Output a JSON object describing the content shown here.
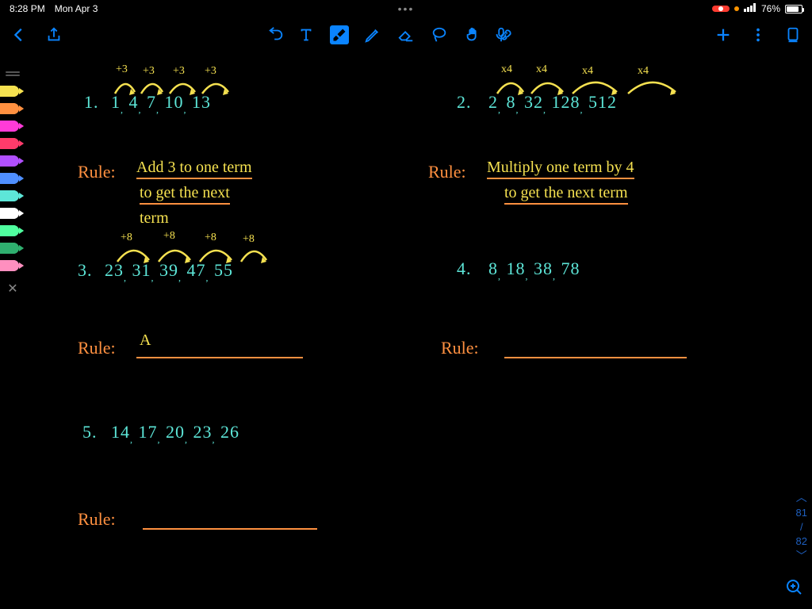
{
  "status": {
    "time": "8:28 PM",
    "date": "Mon Apr 3",
    "battery_pct": "76%",
    "recording": true
  },
  "palette": {
    "colors": [
      "#f5e150",
      "#ff9040",
      "#ff3bd8",
      "#ff3b6b",
      "#b14fff",
      "#4f8fff",
      "#5de6d8",
      "#ffffff",
      "#4fff9f",
      "#2faf6f",
      "#ff8fbf"
    ]
  },
  "problems": {
    "p1": {
      "num": "1.",
      "sequence": "1, 4, 7, 10, 13",
      "arc_labels": [
        "+3",
        "+3",
        "+3",
        "+3"
      ],
      "rule_label": "Rule:",
      "rule_text_l1": "Add 3 to one term",
      "rule_text_l2": "to get the next",
      "rule_text_l3": "term"
    },
    "p2": {
      "num": "2.",
      "sequence": "2, 8, 32, 128, 512",
      "arc_labels": [
        "x4",
        "x4",
        "x4",
        "x4"
      ],
      "rule_label": "Rule:",
      "rule_text_l1": "Multiply one term by 4",
      "rule_text_l2": "to get the next term"
    },
    "p3": {
      "num": "3.",
      "sequence": "23, 31, 39, 47, 55",
      "arc_labels": [
        "+8",
        "+8",
        "+8",
        "+8"
      ],
      "rule_label": "Rule:",
      "rule_partial": "A"
    },
    "p4": {
      "num": "4.",
      "sequence": "8, 18, 38, 78",
      "rule_label": "Rule:"
    },
    "p5": {
      "num": "5.",
      "sequence": "14, 17, 20, 23, 26",
      "rule_label": "Rule:"
    }
  },
  "page_nav": {
    "current": "81",
    "sep": "/",
    "total": "82"
  },
  "arc_color": "#f5e150"
}
